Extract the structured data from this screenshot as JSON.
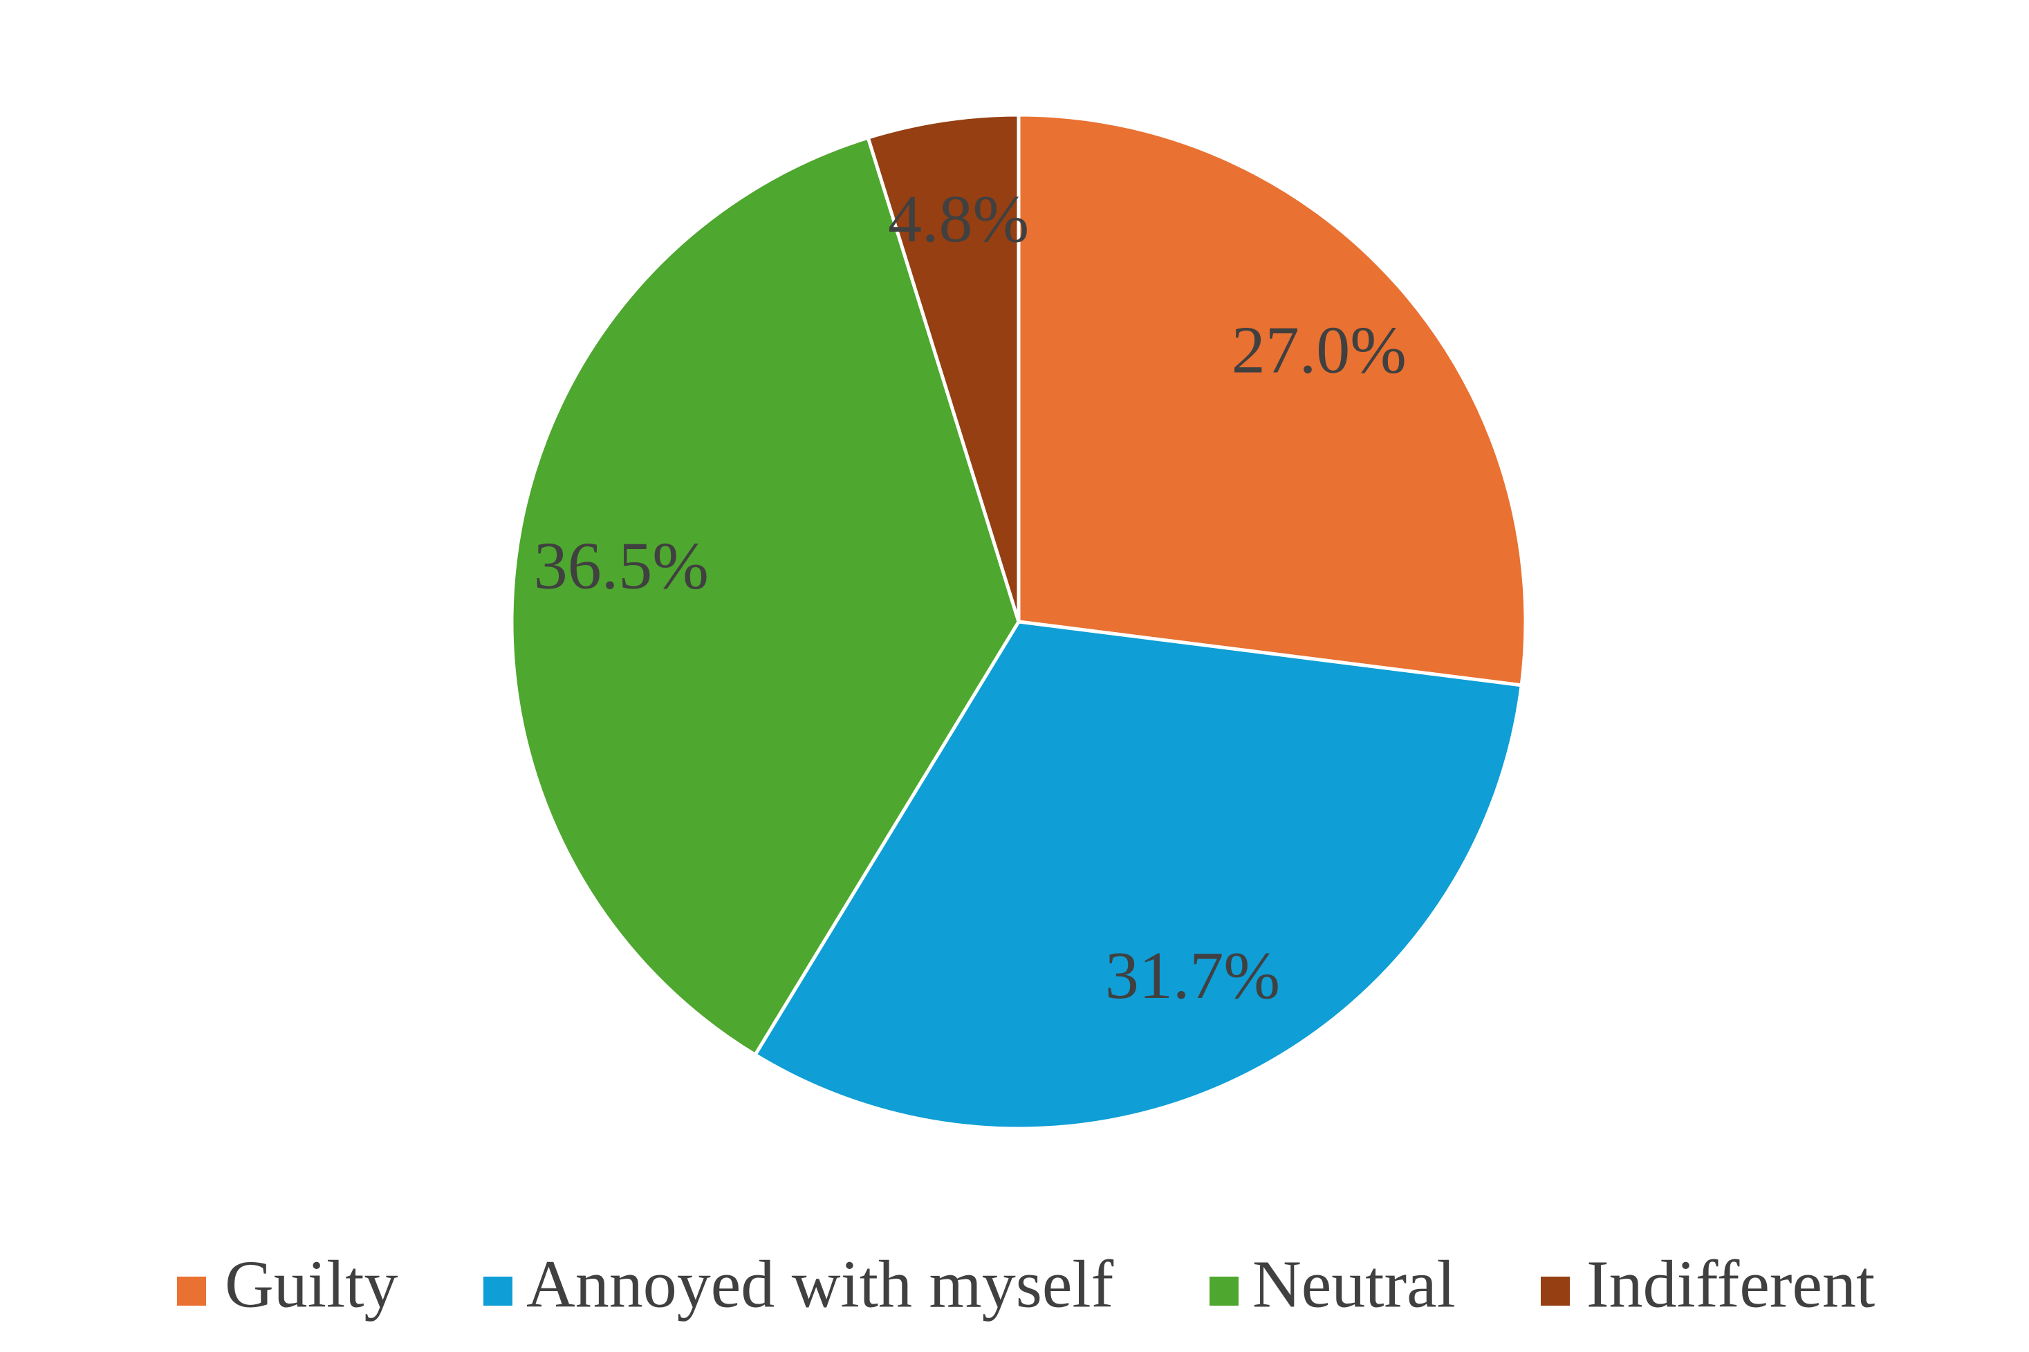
{
  "chart_data": {
    "type": "pie",
    "categories": [
      "Guilty",
      "Annoyed with myself",
      "Neutral",
      "Indifferent"
    ],
    "values": [
      27.0,
      31.7,
      36.5,
      4.8
    ],
    "value_labels": [
      "27.0%",
      "31.7%",
      "36.5%",
      "4.8%"
    ],
    "colors": [
      "#e97132",
      "#0f9ed5",
      "#4ea72e",
      "#953f12"
    ],
    "legend": "bottom"
  }
}
